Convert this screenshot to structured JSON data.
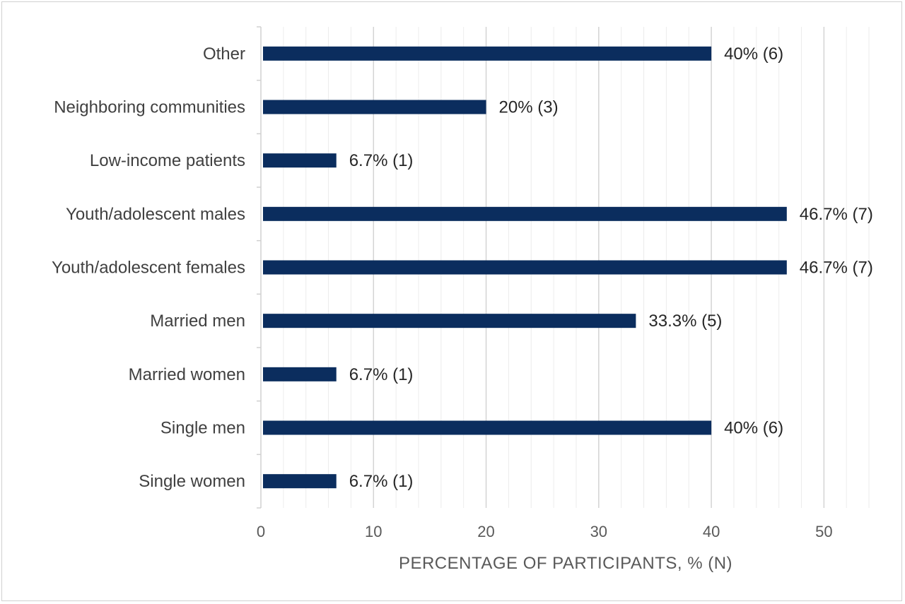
{
  "chart_data": {
    "type": "bar",
    "orientation": "horizontal",
    "categories": [
      "Other",
      "Neighboring communities",
      "Low-income patients",
      "Youth/adolescent males",
      "Youth/adolescent females",
      "Married men",
      "Married women",
      "Single men",
      "Single women"
    ],
    "values": [
      40,
      20,
      6.7,
      46.7,
      46.7,
      33.3,
      6.7,
      40,
      6.7
    ],
    "data_labels": [
      "40% (6)",
      "20% (3)",
      "6.7% (1)",
      "46.7% (7)",
      "46.7% (7)",
      "33.3% (5)",
      "6.7% (1)",
      "40% (6)",
      "6.7% (1)"
    ],
    "xlabel": "PERCENTAGE OF PARTICIPANTS, % (N)",
    "ylabel": "",
    "xlim": [
      0,
      55
    ],
    "xticks": [
      0,
      10,
      20,
      30,
      40,
      50
    ],
    "xtick_labels": [
      "0",
      "10",
      "20",
      "30",
      "40",
      "50"
    ],
    "grid": "vertical major and minor",
    "legend": "none",
    "bar_color": "#0b2d5e"
  }
}
